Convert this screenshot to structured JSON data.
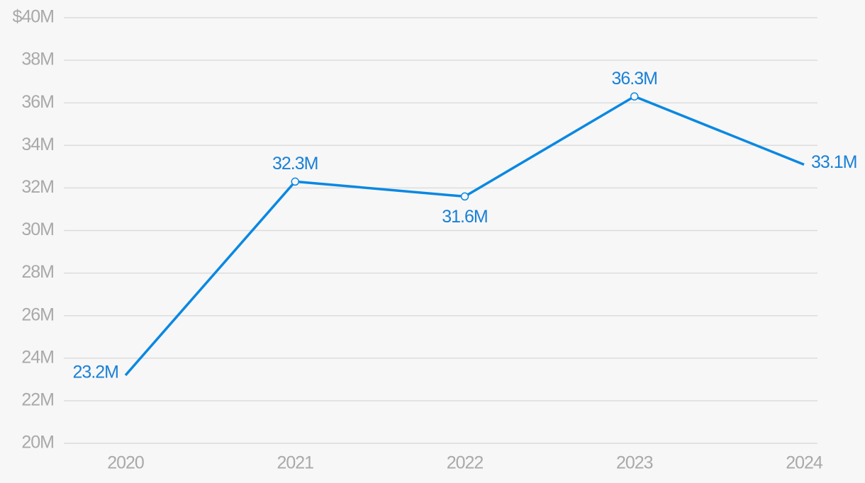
{
  "chart_data": {
    "type": "line",
    "categories": [
      "2020",
      "2021",
      "2022",
      "2023",
      "2024"
    ],
    "series": [
      {
        "color": "#0a88e2",
        "values": [
          23.2,
          32.3,
          31.6,
          36.3,
          33.1
        ],
        "value_labels": [
          "23.2M",
          "32.3M",
          "31.6M",
          "36.3M",
          "33.1M"
        ]
      }
    ],
    "ylim": [
      20,
      40
    ],
    "yticks": [
      {
        "value": 20,
        "label": "20M"
      },
      {
        "value": 22,
        "label": "22M"
      },
      {
        "value": 24,
        "label": "24M"
      },
      {
        "value": 26,
        "label": "26M"
      },
      {
        "value": 28,
        "label": "28M"
      },
      {
        "value": 30,
        "label": "30M"
      },
      {
        "value": 32,
        "label": "32M"
      },
      {
        "value": 34,
        "label": "34M"
      },
      {
        "value": 36,
        "label": "36M"
      },
      {
        "value": 38,
        "label": "38M"
      },
      {
        "value": 40,
        "label": "$40M"
      }
    ],
    "grid": true
  }
}
